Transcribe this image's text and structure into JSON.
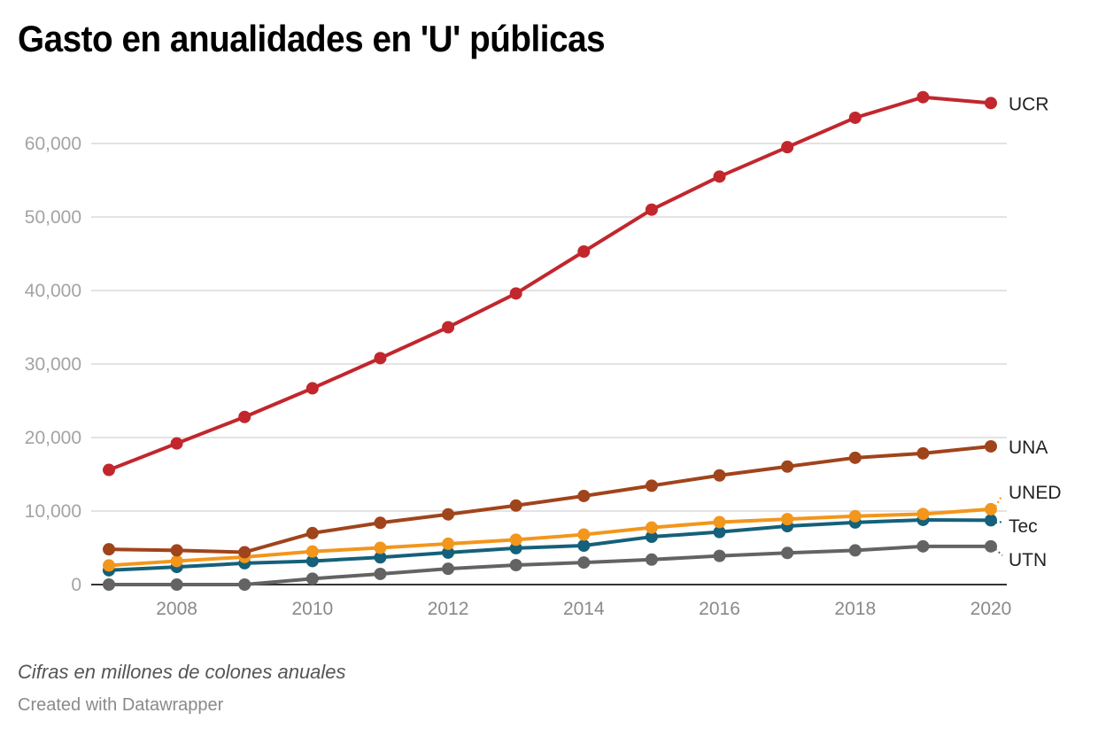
{
  "title": "Gasto en anualidades en 'U' públicas",
  "notes": "Cifras en millones de colones anuales",
  "credit": "Created with Datawrapper",
  "chart_data": {
    "type": "line",
    "title": "Gasto en anualidades en 'U' públicas",
    "xlabel": "",
    "ylabel": "",
    "x": [
      2007,
      2008,
      2009,
      2010,
      2011,
      2012,
      2013,
      2014,
      2015,
      2016,
      2017,
      2018,
      2019,
      2020
    ],
    "xlim": [
      2007,
      2020
    ],
    "ylim": [
      0,
      66500
    ],
    "x_ticks": [
      2008,
      2010,
      2012,
      2014,
      2016,
      2018,
      2020
    ],
    "x_tick_labels": [
      "2008",
      "2010",
      "2012",
      "2014",
      "2016",
      "2018",
      "2020"
    ],
    "y_ticks": [
      0,
      10000,
      20000,
      30000,
      40000,
      50000,
      60000
    ],
    "y_tick_labels": [
      "0",
      "10,000",
      "20,000",
      "30,000",
      "40,000",
      "50,000",
      "60,000"
    ],
    "grid": "horizontal",
    "legend": "direct-labels-right",
    "series": [
      {
        "name": "UCR",
        "color": "#c1272d",
        "values": [
          15600,
          19200,
          22800,
          26700,
          30800,
          35000,
          39600,
          45300,
          51000,
          55500,
          59500,
          63500,
          66300,
          65500
        ]
      },
      {
        "name": "UNA",
        "color": "#a0441b",
        "values": [
          4800,
          4650,
          4400,
          7000,
          8400,
          9550,
          10750,
          12050,
          13450,
          14850,
          16050,
          17250,
          17850,
          18800
        ]
      },
      {
        "name": "UNED",
        "color": "#f3961c",
        "values": [
          2600,
          3200,
          3750,
          4500,
          5000,
          5550,
          6100,
          6800,
          7750,
          8500,
          8900,
          9300,
          9600,
          10250
        ]
      },
      {
        "name": "Tec",
        "color": "#15607a",
        "values": [
          1950,
          2400,
          2900,
          3200,
          3700,
          4350,
          4950,
          5300,
          6500,
          7150,
          7950,
          8450,
          8800,
          8750
        ]
      },
      {
        "name": "UTN",
        "color": "#636363",
        "values": [
          0,
          0,
          0,
          800,
          1450,
          2150,
          2650,
          3000,
          3400,
          3900,
          4300,
          4650,
          5200,
          5200
        ]
      }
    ]
  }
}
